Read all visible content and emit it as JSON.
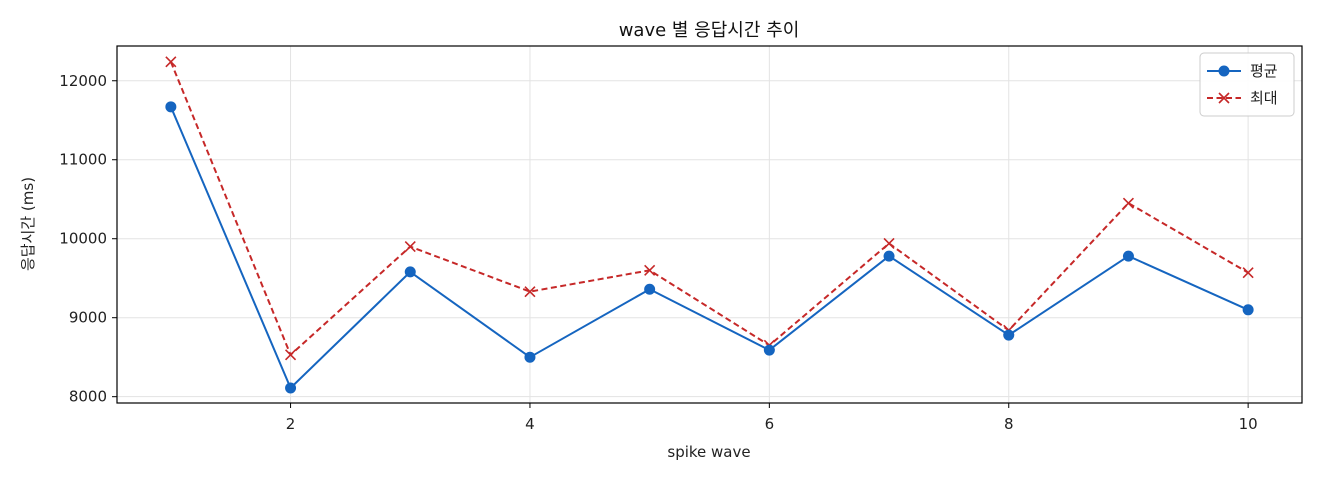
{
  "chart_data": {
    "type": "line",
    "title": "wave 별 응답시간 추이",
    "xlabel": "spike wave",
    "ylabel": "응답시간 (ms)",
    "x": [
      1,
      2,
      3,
      4,
      5,
      6,
      7,
      8,
      9,
      10
    ],
    "xlim": [
      0.55,
      10.45
    ],
    "ylim": [
      7920,
      12440
    ],
    "xticks": [
      2,
      4,
      6,
      8,
      10
    ],
    "yticks": [
      8000,
      9000,
      10000,
      11000,
      12000
    ],
    "grid": true,
    "legend_position": "top-right",
    "series": [
      {
        "name": "평균",
        "color": "#1565c0",
        "line_style": "solid",
        "marker": "circle",
        "values": [
          11670,
          8110,
          9580,
          8500,
          9360,
          8590,
          9780,
          8780,
          9780,
          9100
        ]
      },
      {
        "name": "최대",
        "color": "#c62828",
        "line_style": "dashed",
        "marker": "x",
        "values": [
          12240,
          8530,
          9900,
          9330,
          9600,
          8650,
          9940,
          8840,
          10450,
          9570
        ]
      }
    ]
  }
}
